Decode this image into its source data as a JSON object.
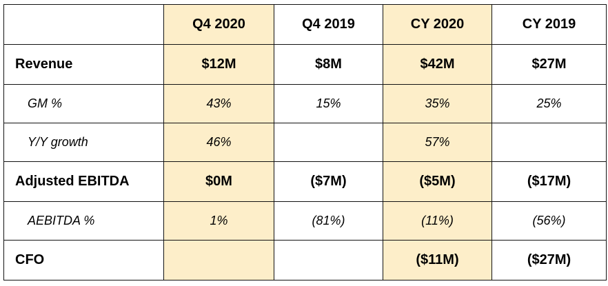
{
  "table": {
    "header": {
      "corner": "",
      "columns": [
        "Q4 2020",
        "Q4 2019",
        "CY 2020",
        "CY 2019"
      ]
    },
    "highlight_color": "#fdeec9",
    "highlighted_columns": [
      "Q4 2020",
      "CY 2020"
    ],
    "rows": [
      {
        "label": "Revenue",
        "style": "bold",
        "values": [
          "$12M",
          "$8M",
          "$42M",
          "$27M"
        ]
      },
      {
        "label": "GM %",
        "style": "italic-indented",
        "values": [
          "43%",
          "15%",
          "35%",
          "25%"
        ]
      },
      {
        "label": "Y/Y growth",
        "style": "italic-indented",
        "values": [
          "46%",
          "",
          "57%",
          ""
        ]
      },
      {
        "label": "Adjusted EBITDA",
        "style": "bold",
        "values": [
          "$0M",
          "($7M)",
          "($5M)",
          "($17M)"
        ]
      },
      {
        "label": "AEBITDA %",
        "style": "italic-indented",
        "values": [
          "1%",
          "(81%)",
          "(11%)",
          "(56%)"
        ]
      },
      {
        "label": "CFO",
        "style": "bold",
        "values": [
          "",
          "",
          "($11M)",
          "($27M)"
        ]
      }
    ]
  }
}
